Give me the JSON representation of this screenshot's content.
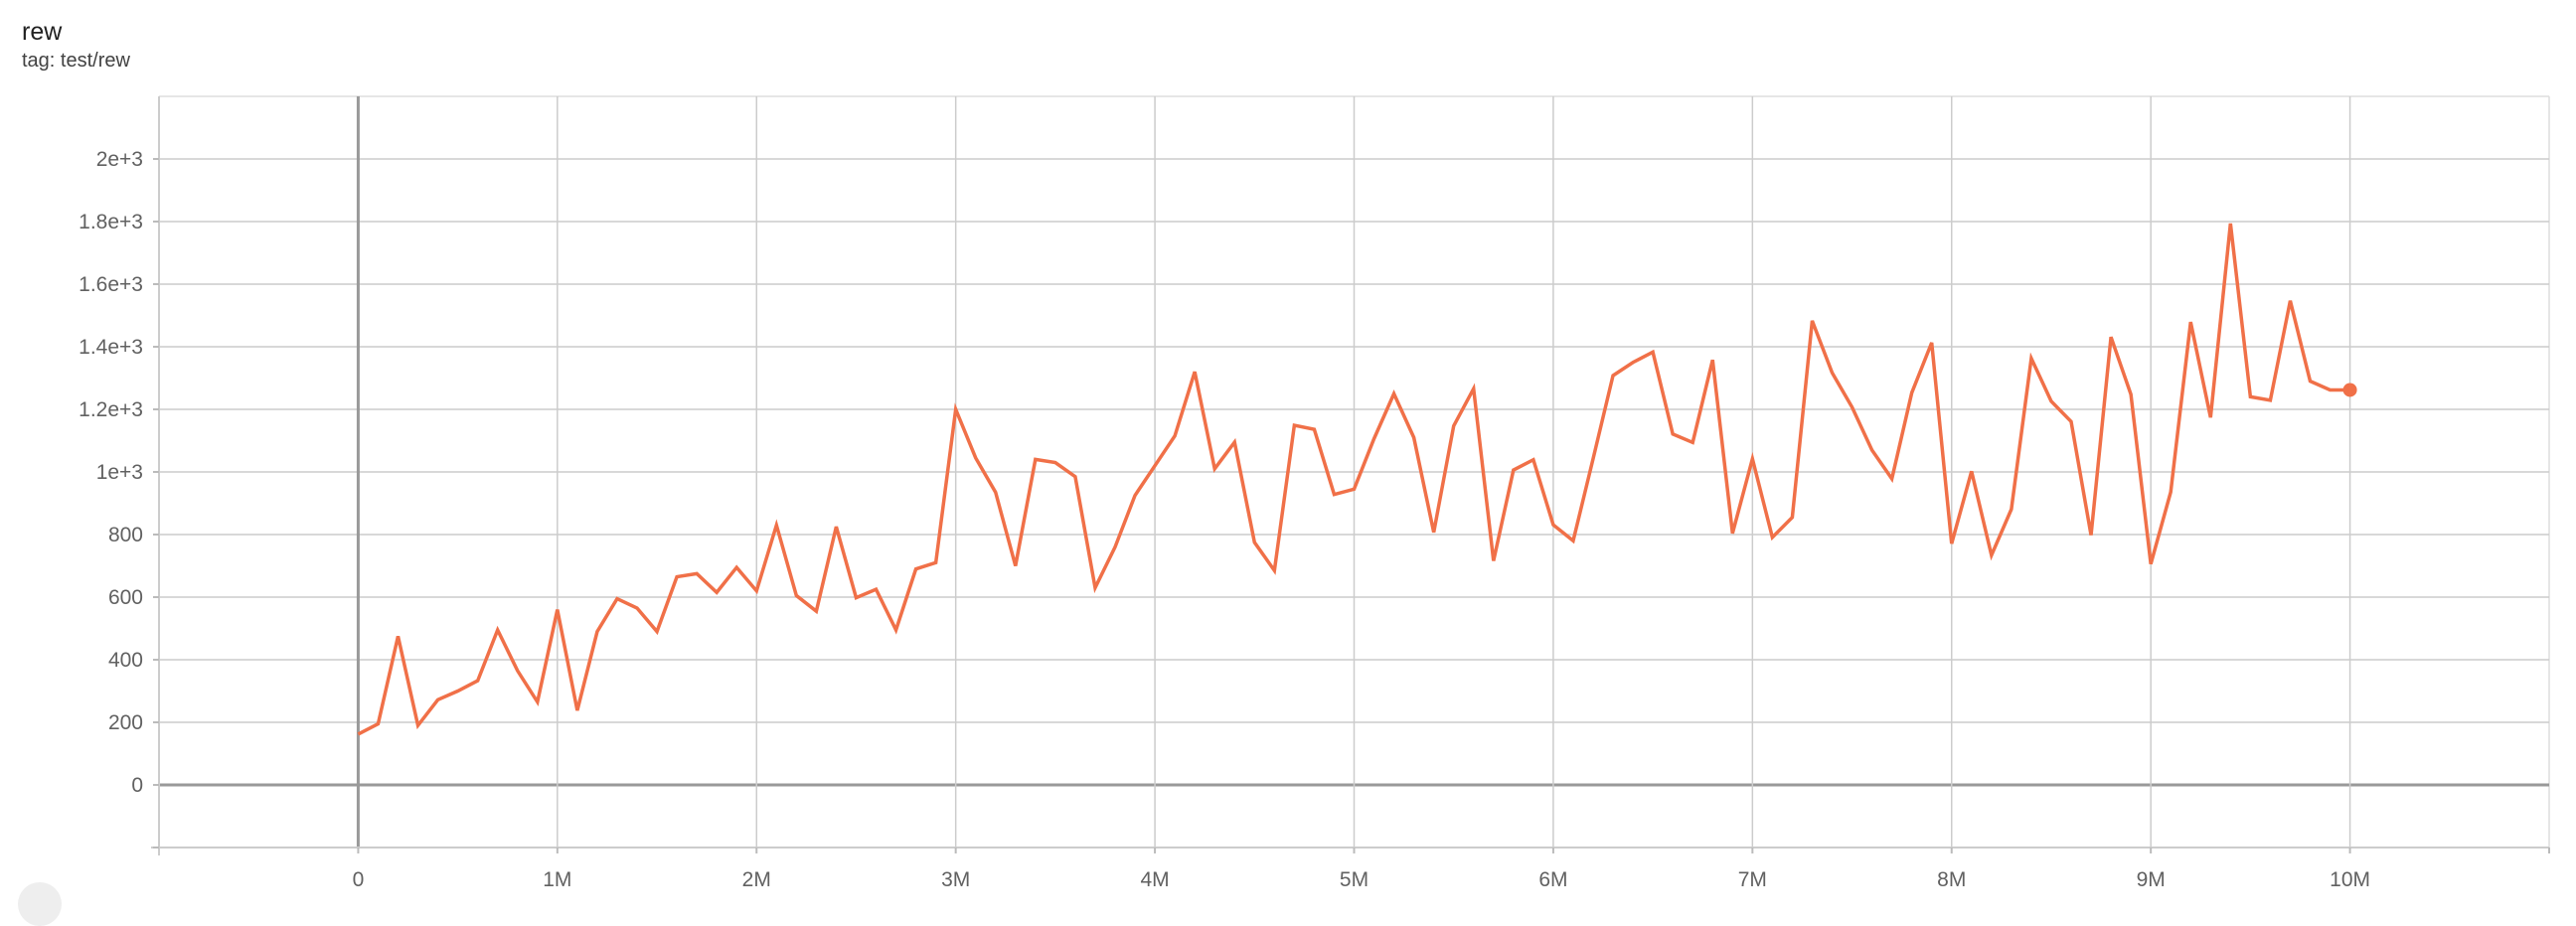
{
  "header": {
    "title": "rew",
    "tag": "tag: test/rew"
  },
  "chart_data": {
    "type": "line",
    "title": "rew",
    "subtitle": "tag: test/rew",
    "xlabel": "",
    "ylabel": "",
    "xlim": [
      -1000000,
      11000000
    ],
    "ylim": [
      -200,
      2200
    ],
    "grid": true,
    "x_ticks": [
      0,
      1000000,
      2000000,
      3000000,
      4000000,
      5000000,
      6000000,
      7000000,
      8000000,
      9000000,
      10000000
    ],
    "x_tick_labels": [
      "0",
      "1M",
      "2M",
      "3M",
      "4M",
      "5M",
      "6M",
      "7M",
      "8M",
      "9M",
      "10M"
    ],
    "y_ticks": [
      0,
      200,
      400,
      600,
      800,
      1000,
      1200,
      1400,
      1600,
      1800,
      2000
    ],
    "y_tick_labels": [
      "0",
      "200",
      "400",
      "600",
      "800",
      "1e+3",
      "1.2e+3",
      "1.4e+3",
      "1.6e+3",
      "1.8e+3",
      "2e+3"
    ],
    "series": [
      {
        "color": "#f07048",
        "x_step": 100000,
        "x_start": 0,
        "values": [
          162,
          195,
          475,
          190,
          272,
          300,
          333,
          495,
          365,
          265,
          560,
          238,
          490,
          595,
          565,
          490,
          665,
          675,
          615,
          695,
          620,
          830,
          605,
          555,
          825,
          598,
          625,
          495,
          690,
          710,
          1200,
          1045,
          935,
          700,
          1040,
          1030,
          985,
          630,
          760,
          925,
          1020,
          1115,
          1320,
          1010,
          1095,
          775,
          685,
          1149,
          1136,
          928,
          945,
          1106,
          1250,
          1110,
          807,
          1147,
          1266,
          716,
          1006,
          1039,
          831,
          780,
          1042,
          1308,
          1350,
          1383,
          1121,
          1094,
          1358,
          804,
          1042,
          791,
          855,
          1483,
          1317,
          1207,
          1070,
          978,
          1253,
          1413,
          771,
          1002,
          734,
          881,
          1363,
          1226,
          1161,
          798,
          1431,
          1248,
          706,
          936,
          1479,
          1174,
          1794,
          1240,
          1229,
          1547,
          1290,
          1262,
          1262
        ]
      }
    ]
  }
}
